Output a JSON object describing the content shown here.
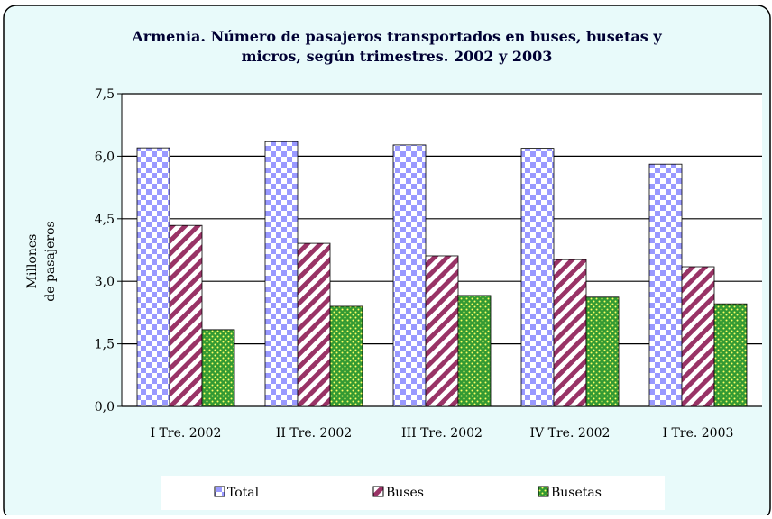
{
  "chart_data": {
    "type": "bar",
    "title": "Armenia. Número de pasajeros transportados en buses, busetas y micros, según trimestres. 2002 y 2003",
    "y_label": [
      "Millones",
      "de pasajeros"
    ],
    "categories": [
      "I Tre. 2002",
      "II Tre. 2002",
      "III Tre. 2002",
      "IV Tre. 2002",
      "I Tre. 2003"
    ],
    "series": [
      {
        "name": "Total",
        "color": "#9999ff",
        "values": [
          6.2,
          6.35,
          6.27,
          6.19,
          5.81
        ]
      },
      {
        "name": "Buses",
        "color": "#993366",
        "values": [
          4.34,
          3.91,
          3.61,
          3.52,
          3.35
        ]
      },
      {
        "name": "Busetas",
        "color": "#339933",
        "values": [
          1.84,
          2.4,
          2.66,
          2.62,
          2.46
        ]
      }
    ],
    "ylim": [
      0,
      7.5
    ],
    "yticks": [
      {
        "value": 0,
        "label": "0,0"
      },
      {
        "value": 1.5,
        "label": "1,5"
      },
      {
        "value": 3,
        "label": "3,0"
      },
      {
        "value": 4.5,
        "label": "4,5"
      },
      {
        "value": 6,
        "label": "6,0"
      },
      {
        "value": 7.5,
        "label": "7,5"
      }
    ],
    "grid": true
  }
}
